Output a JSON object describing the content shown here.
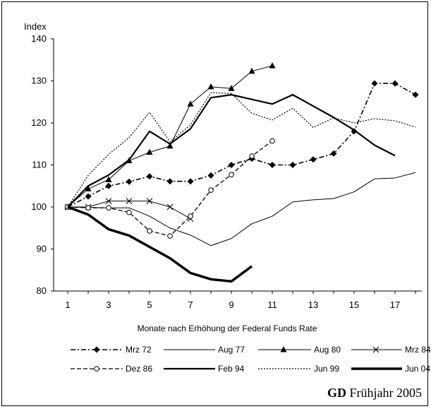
{
  "footer": {
    "brand": "GD",
    "edition": " Frühjahr 2005"
  },
  "chart_data": {
    "type": "line",
    "ylabel": "Index",
    "xlabel": "Monate nach Erhöhung der Federal Funds Rate",
    "ylim": [
      80,
      140
    ],
    "yticks": [
      80,
      90,
      100,
      110,
      120,
      130,
      140
    ],
    "xlim": [
      1,
      18
    ],
    "xticks": [
      1,
      3,
      5,
      7,
      9,
      11,
      13,
      15,
      17
    ],
    "grid": false,
    "legend_position": "bottom",
    "series": [
      {
        "name": "Mrz 72",
        "style": "dashdot-diamond",
        "x": [
          1,
          2,
          3,
          4,
          5,
          6,
          7,
          8,
          9,
          10,
          11,
          12,
          13,
          14,
          15,
          16,
          17,
          18
        ],
        "y": [
          100,
          102.5,
          105,
          106,
          107.3,
          106.1,
          106.1,
          107.5,
          110,
          111.5,
          110,
          110,
          111.3,
          112.7,
          118,
          129.4,
          129.4,
          126.7
        ]
      },
      {
        "name": "Aug 77",
        "style": "thin-solid",
        "x": [
          1,
          2,
          3,
          4,
          5,
          6,
          7,
          8,
          9,
          10,
          11,
          12,
          13,
          14,
          15,
          16,
          17,
          18
        ],
        "y": [
          100,
          99.9,
          99.8,
          99.8,
          97.8,
          95,
          93.3,
          90.8,
          92.5,
          96,
          97.8,
          101.2,
          101.7,
          102,
          103.6,
          106.7,
          106.9,
          108.2
        ]
      },
      {
        "name": "Aug 80",
        "style": "solid-triangle",
        "x": [
          1,
          2,
          3,
          4,
          5,
          6,
          7,
          8,
          9,
          10,
          11
        ],
        "y": [
          100,
          104.3,
          106.5,
          111,
          113,
          114.5,
          124.5,
          128.6,
          128.2,
          132.3,
          133.6
        ]
      },
      {
        "name": "Mrz 84",
        "style": "solid-cross",
        "x": [
          1,
          2,
          3,
          4,
          5,
          6,
          7
        ],
        "y": [
          100,
          100,
          101.4,
          101.4,
          101.4,
          100,
          97.2
        ]
      },
      {
        "name": "Dez 86",
        "style": "dashed-circle",
        "x": [
          1,
          2,
          3,
          4,
          5,
          6,
          7,
          8,
          9,
          10,
          11
        ],
        "y": [
          100,
          99.8,
          99.8,
          98.7,
          94.3,
          93.1,
          97.8,
          104,
          107.7,
          112.1,
          115.7
        ]
      },
      {
        "name": "Feb 94",
        "style": "medium-solid",
        "x": [
          1,
          2,
          3,
          4,
          5,
          6,
          7,
          8,
          9,
          10,
          11,
          12,
          13,
          14,
          15,
          16,
          17
        ],
        "y": [
          100,
          105,
          107.6,
          111.2,
          118,
          115,
          118.6,
          126,
          126.7,
          125.6,
          124.5,
          126.7,
          124,
          121.3,
          118.3,
          114.7,
          112.2
        ]
      },
      {
        "name": "Jun 99",
        "style": "dotted",
        "x": [
          1,
          2,
          3,
          4,
          5,
          6,
          7,
          8,
          9,
          10,
          11,
          12,
          13,
          14,
          15,
          16,
          17,
          18
        ],
        "y": [
          100,
          107.5,
          112.5,
          116.5,
          122.5,
          115.5,
          119.5,
          127.2,
          127,
          122.3,
          120.7,
          123.5,
          118.9,
          121.2,
          120,
          121,
          120.5,
          119
        ]
      },
      {
        "name": "Jun 04",
        "style": "thick-solid",
        "x": [
          1,
          2,
          3,
          4,
          5,
          6,
          7,
          8,
          9,
          10
        ],
        "y": [
          100,
          98.2,
          94.7,
          93.2,
          90.5,
          87.8,
          84.3,
          82.8,
          82.3,
          85.9
        ]
      }
    ]
  }
}
